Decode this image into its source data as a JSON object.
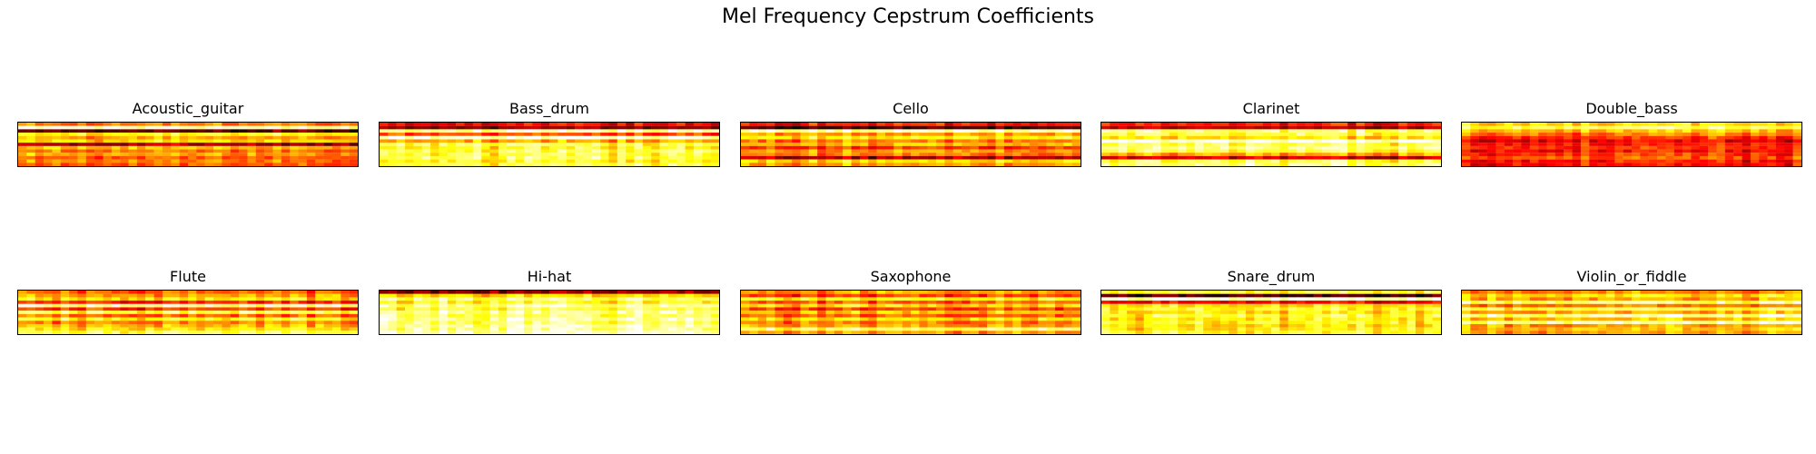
{
  "figure": {
    "suptitle": "Mel Frequency Cepstrum Coefficients"
  },
  "chart_data": [
    {
      "type": "heatmap",
      "title": "Acoustic_guitar",
      "colormap": "hot",
      "rows": 13,
      "cols": 40,
      "row_profile": [
        0.55,
        0.95,
        0.15,
        0.75,
        0.6,
        0.7,
        0.25,
        0.65,
        0.55,
        0.6,
        0.5,
        0.55,
        0.5
      ]
    },
    {
      "type": "heatmap",
      "title": "Bass_drum",
      "colormap": "hot",
      "rows": 13,
      "cols": 40,
      "row_profile": [
        0.35,
        0.2,
        0.9,
        0.45,
        0.95,
        0.6,
        0.8,
        0.75,
        0.8,
        0.78,
        0.82,
        0.75,
        0.8
      ]
    },
    {
      "type": "heatmap",
      "title": "Cello",
      "colormap": "hot",
      "rows": 13,
      "cols": 40,
      "row_profile": [
        0.4,
        0.1,
        0.9,
        0.6,
        0.75,
        0.55,
        0.65,
        0.45,
        0.6,
        0.55,
        0.25,
        0.7,
        0.6
      ]
    },
    {
      "type": "heatmap",
      "title": "Clarinet",
      "colormap": "hot",
      "rows": 13,
      "cols": 40,
      "row_profile": [
        0.4,
        0.25,
        0.85,
        0.8,
        0.7,
        0.95,
        0.8,
        0.85,
        0.8,
        0.6,
        0.3,
        0.8,
        0.85
      ]
    },
    {
      "type": "heatmap",
      "title": "Double_bass",
      "colormap": "hot",
      "rows": 13,
      "cols": 40,
      "row_profile": [
        0.7,
        0.85,
        0.65,
        0.55,
        0.45,
        0.35,
        0.4,
        0.45,
        0.4,
        0.45,
        0.5,
        0.4,
        0.4
      ]
    },
    {
      "type": "heatmap",
      "title": "Flute",
      "colormap": "hot",
      "rows": 13,
      "cols": 40,
      "row_profile": [
        0.5,
        0.6,
        0.7,
        0.4,
        0.9,
        0.45,
        0.8,
        0.5,
        0.75,
        0.55,
        0.65,
        0.7,
        0.8
      ]
    },
    {
      "type": "heatmap",
      "title": "Hi-hat",
      "colormap": "hot",
      "rows": 13,
      "cols": 40,
      "row_profile": [
        0.2,
        0.7,
        0.85,
        0.75,
        0.9,
        0.8,
        0.88,
        0.85,
        0.9,
        0.85,
        0.9,
        0.88,
        0.95
      ]
    },
    {
      "type": "heatmap",
      "title": "Saxophone",
      "colormap": "hot",
      "rows": 13,
      "cols": 40,
      "row_profile": [
        0.6,
        0.45,
        0.75,
        0.5,
        0.7,
        0.45,
        0.65,
        0.5,
        0.7,
        0.55,
        0.6,
        0.85,
        0.6
      ]
    },
    {
      "type": "heatmap",
      "title": "Snare_drum",
      "colormap": "hot",
      "rows": 13,
      "cols": 40,
      "row_profile": [
        0.8,
        0.1,
        0.95,
        0.35,
        0.7,
        0.75,
        0.7,
        0.78,
        0.72,
        0.75,
        0.7,
        0.72,
        0.75
      ]
    },
    {
      "type": "heatmap",
      "title": "Violin_or_fiddle",
      "colormap": "hot",
      "rows": 13,
      "cols": 40,
      "row_profile": [
        0.55,
        0.7,
        0.6,
        0.85,
        0.55,
        0.8,
        0.6,
        0.88,
        0.65,
        0.9,
        0.6,
        0.65,
        0.6
      ]
    }
  ]
}
